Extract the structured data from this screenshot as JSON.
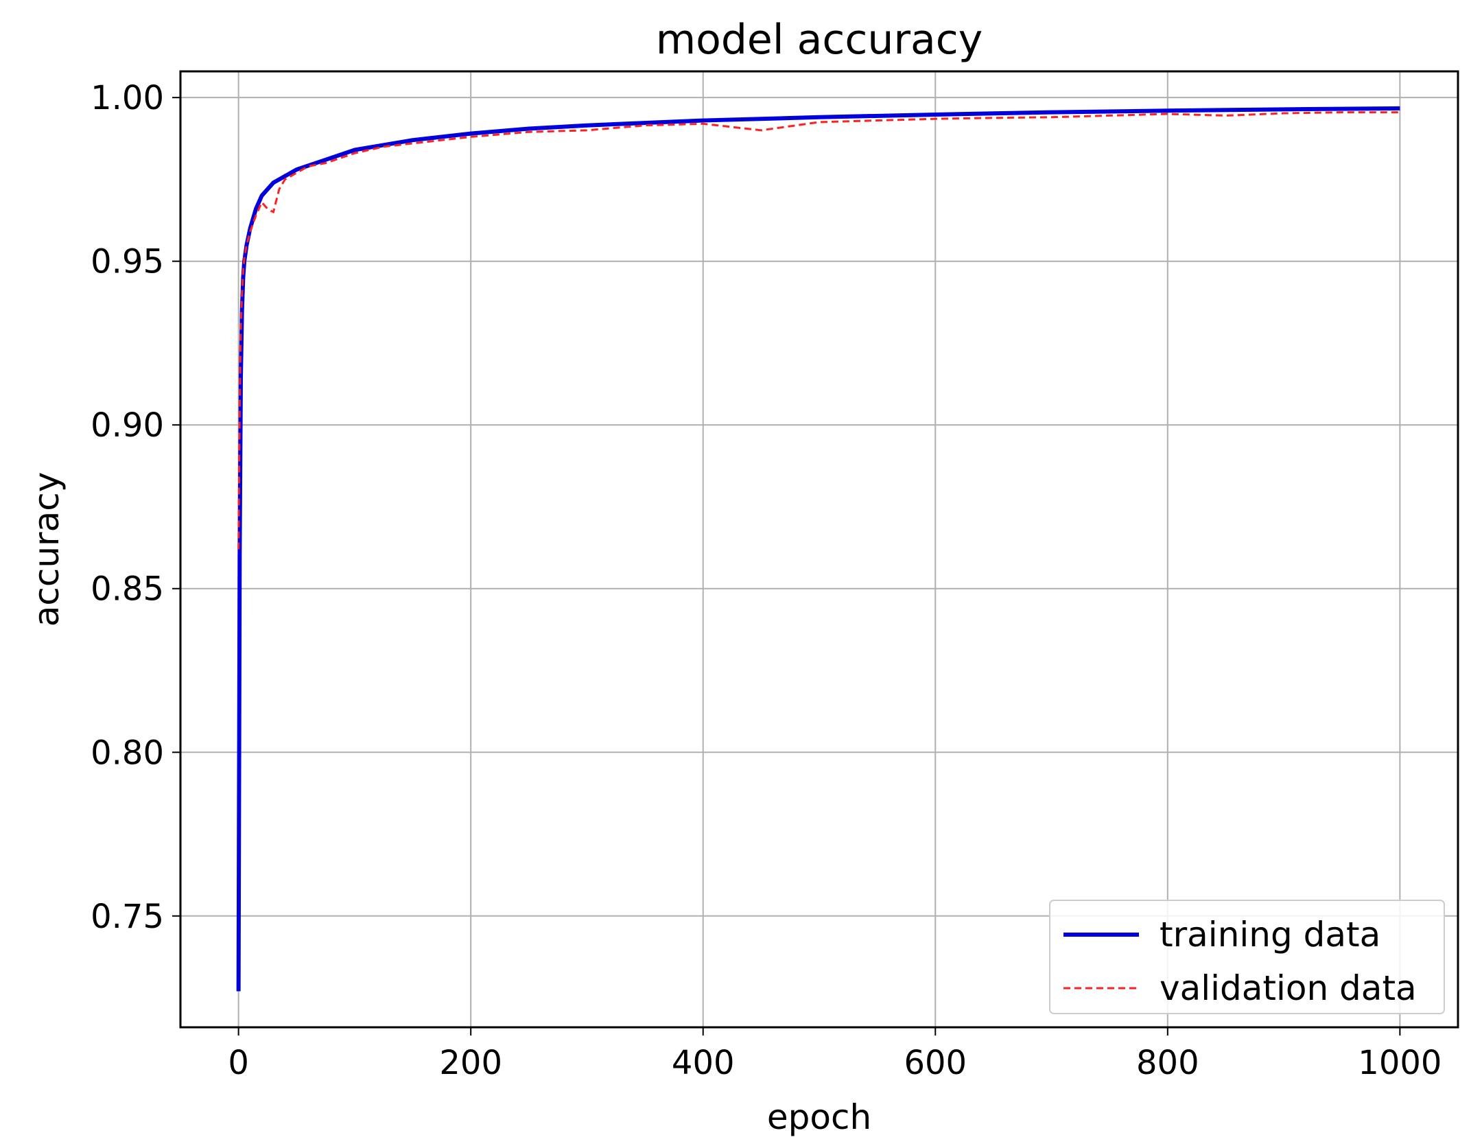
{
  "chart_data": {
    "type": "line",
    "title": "model accuracy",
    "xlabel": "epoch",
    "ylabel": "accuracy",
    "xlim": [
      -50,
      1050
    ],
    "ylim": [
      0.716,
      1.008
    ],
    "xticks": [
      0,
      200,
      400,
      600,
      800,
      1000
    ],
    "xtick_labels": [
      "0",
      "200",
      "400",
      "600",
      "800",
      "1000"
    ],
    "yticks": [
      0.75,
      0.8,
      0.85,
      0.9,
      0.95,
      1.0
    ],
    "ytick_labels": [
      "0.75",
      "0.80",
      "0.85",
      "0.90",
      "0.95",
      "1.00"
    ],
    "grid": true,
    "legend": {
      "location": "lower-right",
      "entries": [
        {
          "label": "training data",
          "color": "#0000dd",
          "style": "solid"
        },
        {
          "label": "validation data",
          "color": "#ff2020",
          "style": "dashed"
        }
      ]
    },
    "series": [
      {
        "name": "training data",
        "color": "#0000dd",
        "style": "solid",
        "x": [
          0,
          1,
          2,
          3,
          4,
          5,
          7,
          10,
          15,
          20,
          30,
          50,
          75,
          100,
          150,
          200,
          250,
          300,
          400,
          500,
          600,
          700,
          800,
          900,
          1000
        ],
        "y": [
          0.727,
          0.86,
          0.915,
          0.935,
          0.945,
          0.95,
          0.955,
          0.96,
          0.966,
          0.97,
          0.974,
          0.978,
          0.981,
          0.984,
          0.987,
          0.989,
          0.9905,
          0.9915,
          0.993,
          0.994,
          0.9948,
          0.9955,
          0.996,
          0.9964,
          0.9967
        ]
      },
      {
        "name": "validation data",
        "color": "#ff2020",
        "style": "dashed",
        "x": [
          0,
          1,
          2,
          3,
          4,
          5,
          7,
          10,
          15,
          20,
          25,
          30,
          35,
          40,
          50,
          60,
          75,
          100,
          125,
          150,
          175,
          200,
          250,
          300,
          350,
          400,
          450,
          500,
          550,
          600,
          650,
          700,
          750,
          800,
          850,
          900,
          950,
          1000
        ],
        "y": [
          0.862,
          0.905,
          0.93,
          0.94,
          0.947,
          0.951,
          0.955,
          0.959,
          0.964,
          0.968,
          0.966,
          0.965,
          0.972,
          0.975,
          0.977,
          0.979,
          0.98,
          0.983,
          0.985,
          0.986,
          0.987,
          0.988,
          0.9895,
          0.99,
          0.9915,
          0.992,
          0.99,
          0.9925,
          0.993,
          0.9935,
          0.9938,
          0.994,
          0.9945,
          0.995,
          0.9945,
          0.9952,
          0.9955,
          0.9955
        ]
      }
    ]
  }
}
